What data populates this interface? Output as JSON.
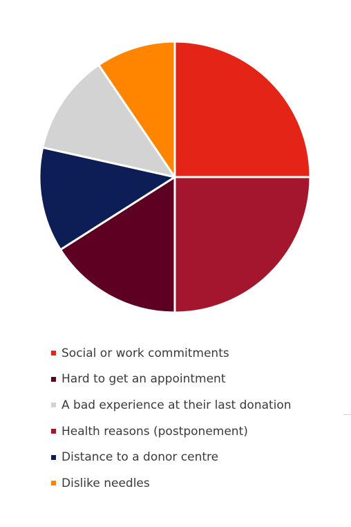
{
  "chart_data": {
    "type": "pie",
    "title": "",
    "start_angle_deg": 0,
    "direction": "clockwise",
    "slices": [
      {
        "label": "Social or work commitments",
        "value": 25,
        "color": "#E32416"
      },
      {
        "label": "Health reasons (postponement)",
        "value": 25,
        "color": "#A3162E"
      },
      {
        "label": "Hard to get an appointment",
        "value": 16,
        "color": "#5E0022"
      },
      {
        "label": "Distance to a donor centre",
        "value": 12.5,
        "color": "#0D1D55"
      },
      {
        "label": "A bad experience at their last donation",
        "value": 12,
        "color": "#D3D3D3"
      },
      {
        "label": "Dislike needles",
        "value": 9.5,
        "color": "#FF8400"
      }
    ],
    "legend": {
      "placement": "bottom",
      "order": [
        0,
        2,
        4,
        1,
        3,
        5
      ]
    }
  }
}
